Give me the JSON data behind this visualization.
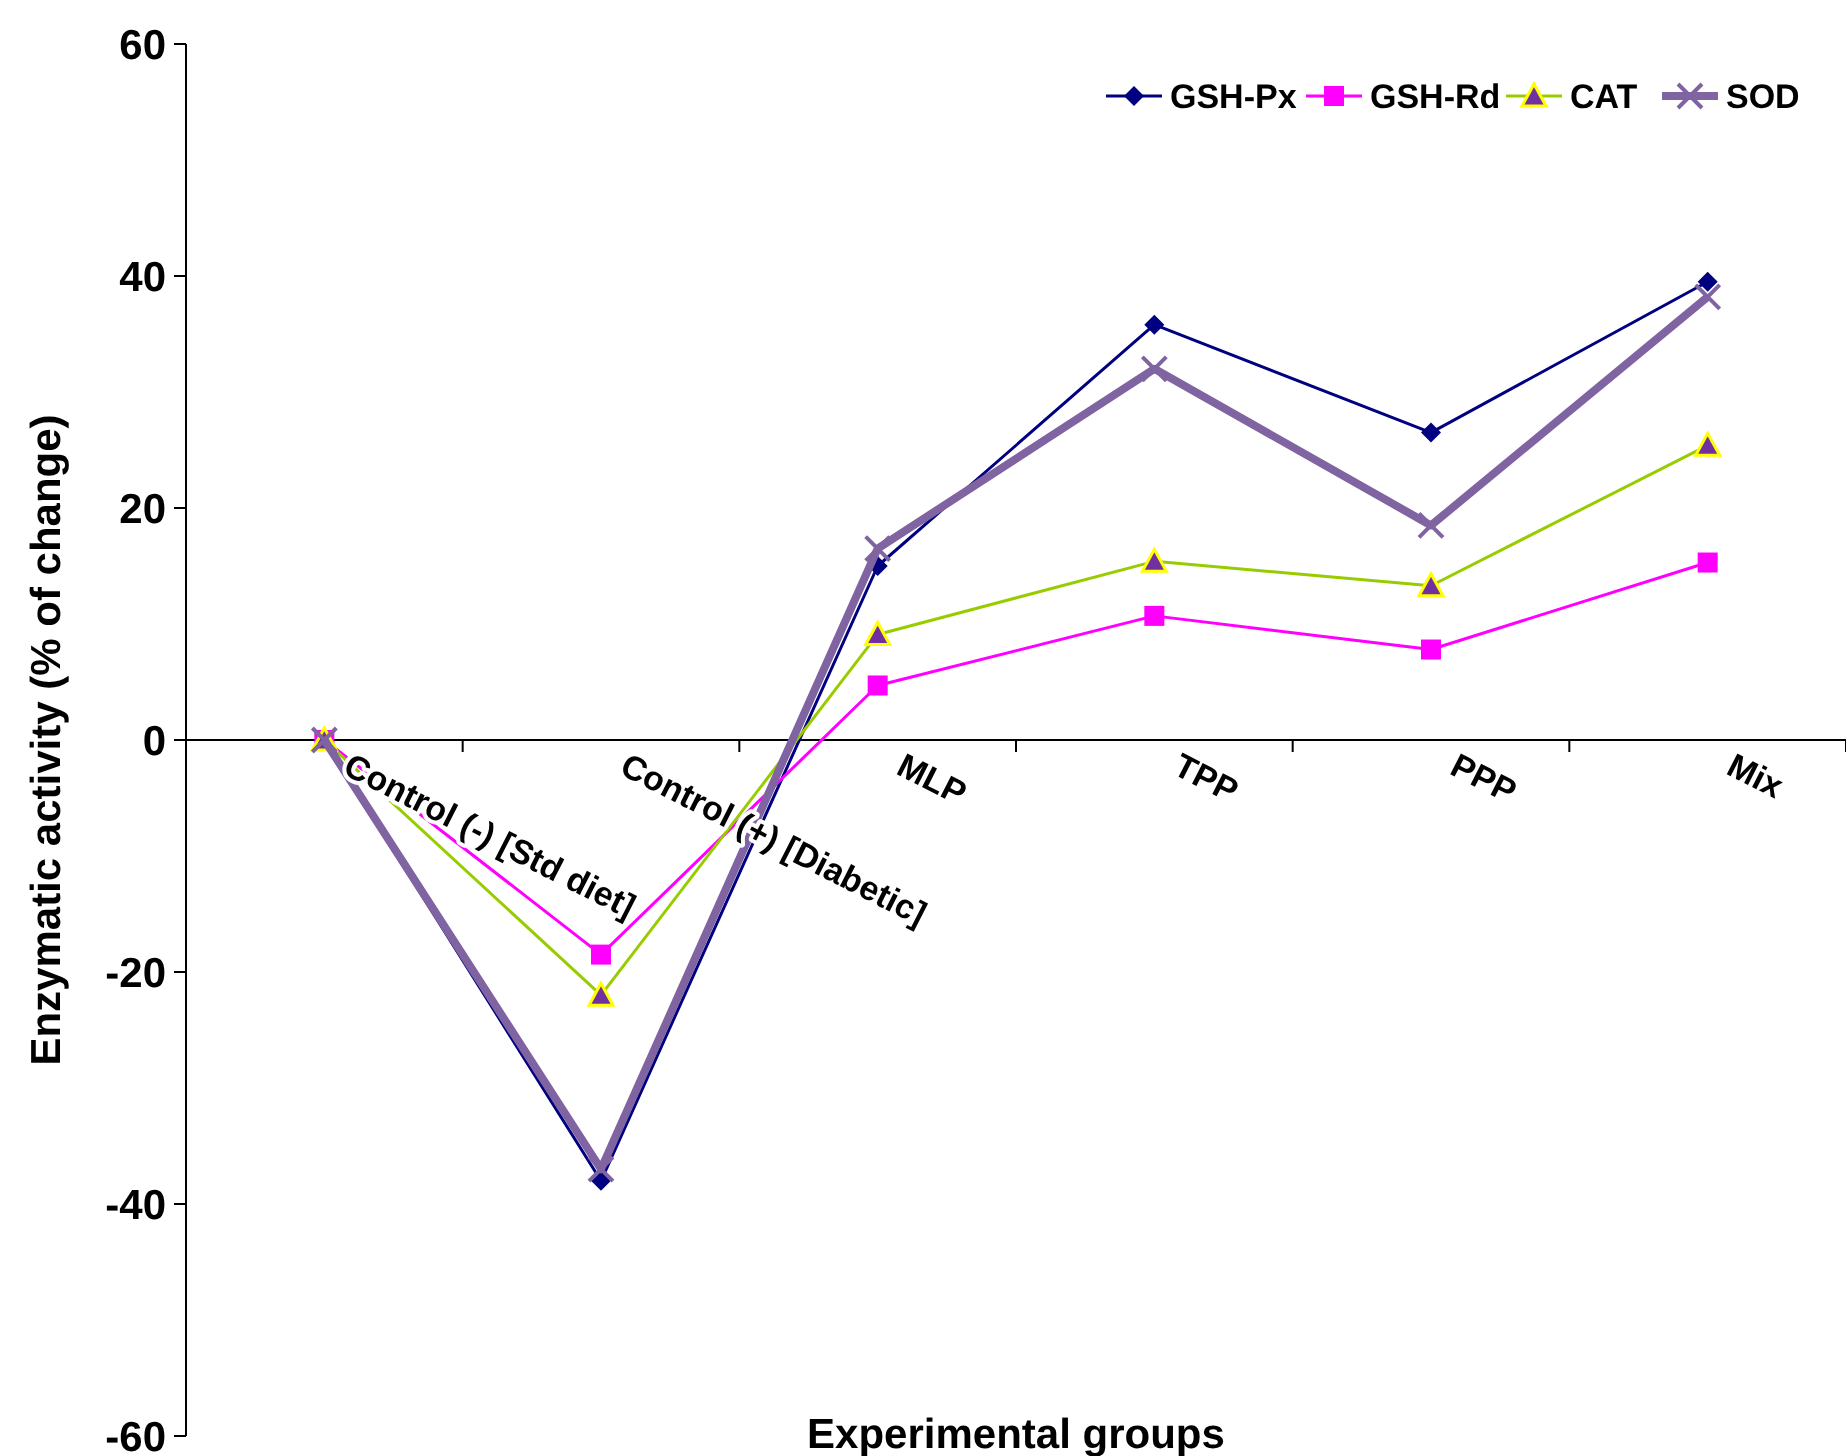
{
  "chart_data": {
    "type": "line",
    "xlabel": "Experimental groups",
    "ylabel": "Enzymatic activity  (% of change)",
    "categories": [
      "Control (-) [Std diet]",
      "Control (+) [Diabetic]",
      "MLP",
      "TPP",
      "PPP",
      "Mix"
    ],
    "ylim": [
      -60,
      60
    ],
    "yticks": [
      -60,
      -40,
      -20,
      0,
      20,
      40,
      60
    ],
    "grid": false,
    "legend": "top right",
    "series": [
      {
        "name": "GSH-Px",
        "color": "#000080",
        "marker": "diamond",
        "values": [
          0,
          -38,
          15,
          35.8,
          26.5,
          39.5
        ]
      },
      {
        "name": "GSH-Rd",
        "color": "#ff00ff",
        "marker": "square",
        "values": [
          0,
          -18.5,
          4.7,
          10.7,
          7.8,
          15.3
        ]
      },
      {
        "name": "CAT",
        "color": "#99cc00",
        "marker": "triangle",
        "values": [
          0,
          -22,
          9.1,
          15.4,
          13.3,
          25.4
        ]
      },
      {
        "name": "SOD",
        "color": "#8064a2",
        "marker": "cross",
        "values": [
          0,
          -37,
          16.5,
          32,
          18.5,
          38.2
        ]
      }
    ]
  }
}
